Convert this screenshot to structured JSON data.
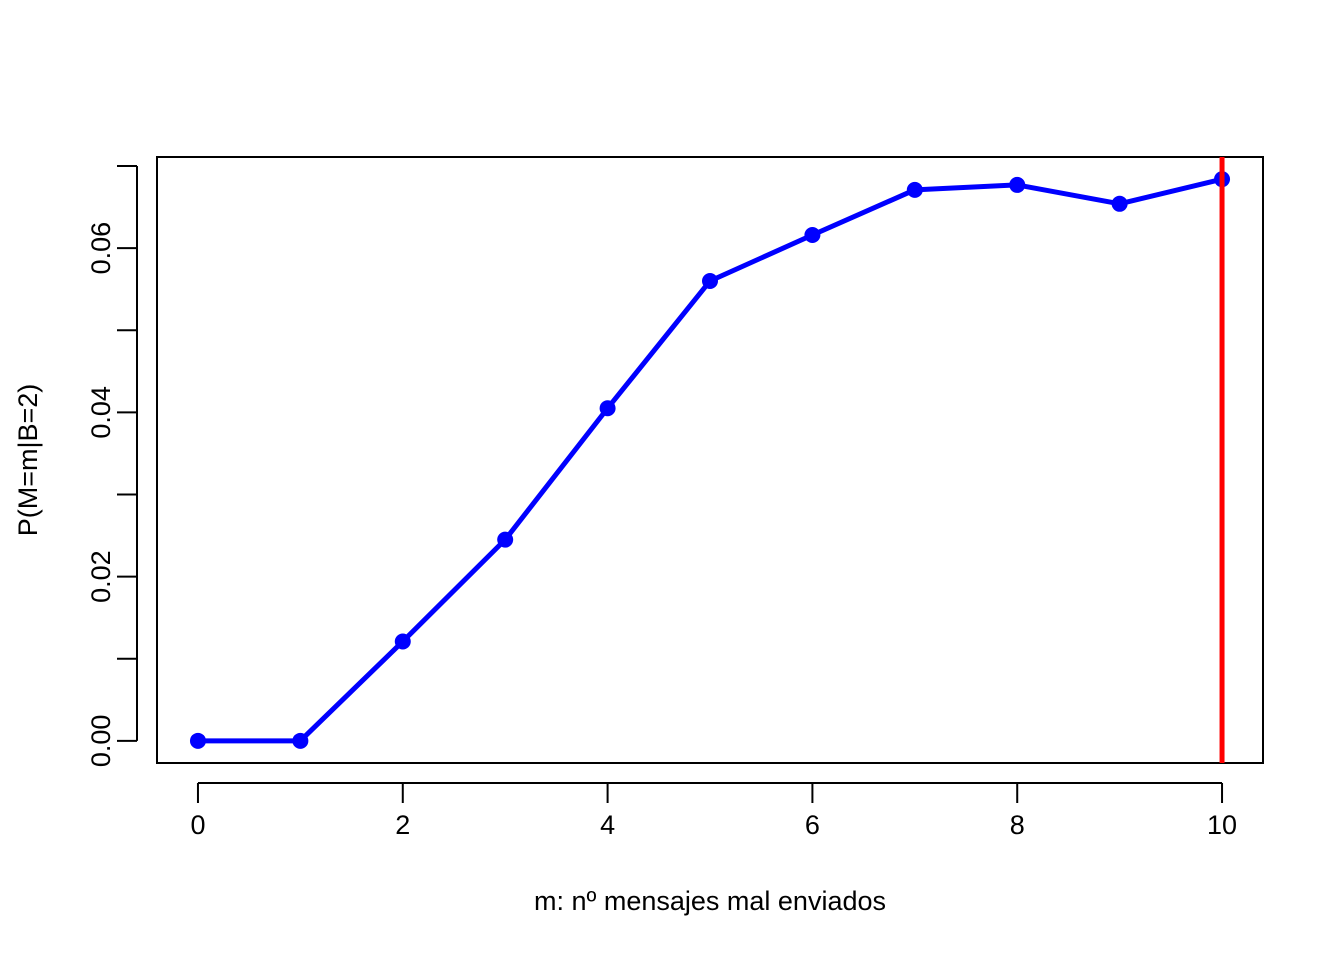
{
  "chart_data": {
    "type": "line",
    "title": "",
    "xlabel": "m: nº mensajes mal enviados",
    "ylabel": "P(M=m|B=2)",
    "x": [
      0,
      1,
      2,
      3,
      4,
      5,
      6,
      7,
      8,
      9,
      10
    ],
    "series": [
      {
        "values": [
          0.0,
          0.0,
          0.0121,
          0.0245,
          0.0405,
          0.056,
          0.0616,
          0.0671,
          0.0677,
          0.0654,
          0.0684
        ],
        "color": "#0000FF",
        "markers": "filled-circle"
      }
    ],
    "vline": {
      "x": 10,
      "color": "#FF0000"
    },
    "xlim": [
      -0.4,
      10.4
    ],
    "ylim": [
      -0.0027,
      0.0711
    ],
    "xticks": [
      "0",
      "2",
      "4",
      "6",
      "8",
      "10"
    ],
    "xtick_values": [
      0,
      2,
      4,
      6,
      8,
      10
    ],
    "yticks": [
      "0.00",
      "0.02",
      "0.04",
      "0.06"
    ],
    "ytick_values": [
      0.0,
      0.02,
      0.04,
      0.06
    ],
    "grid": false,
    "legend": "none"
  }
}
